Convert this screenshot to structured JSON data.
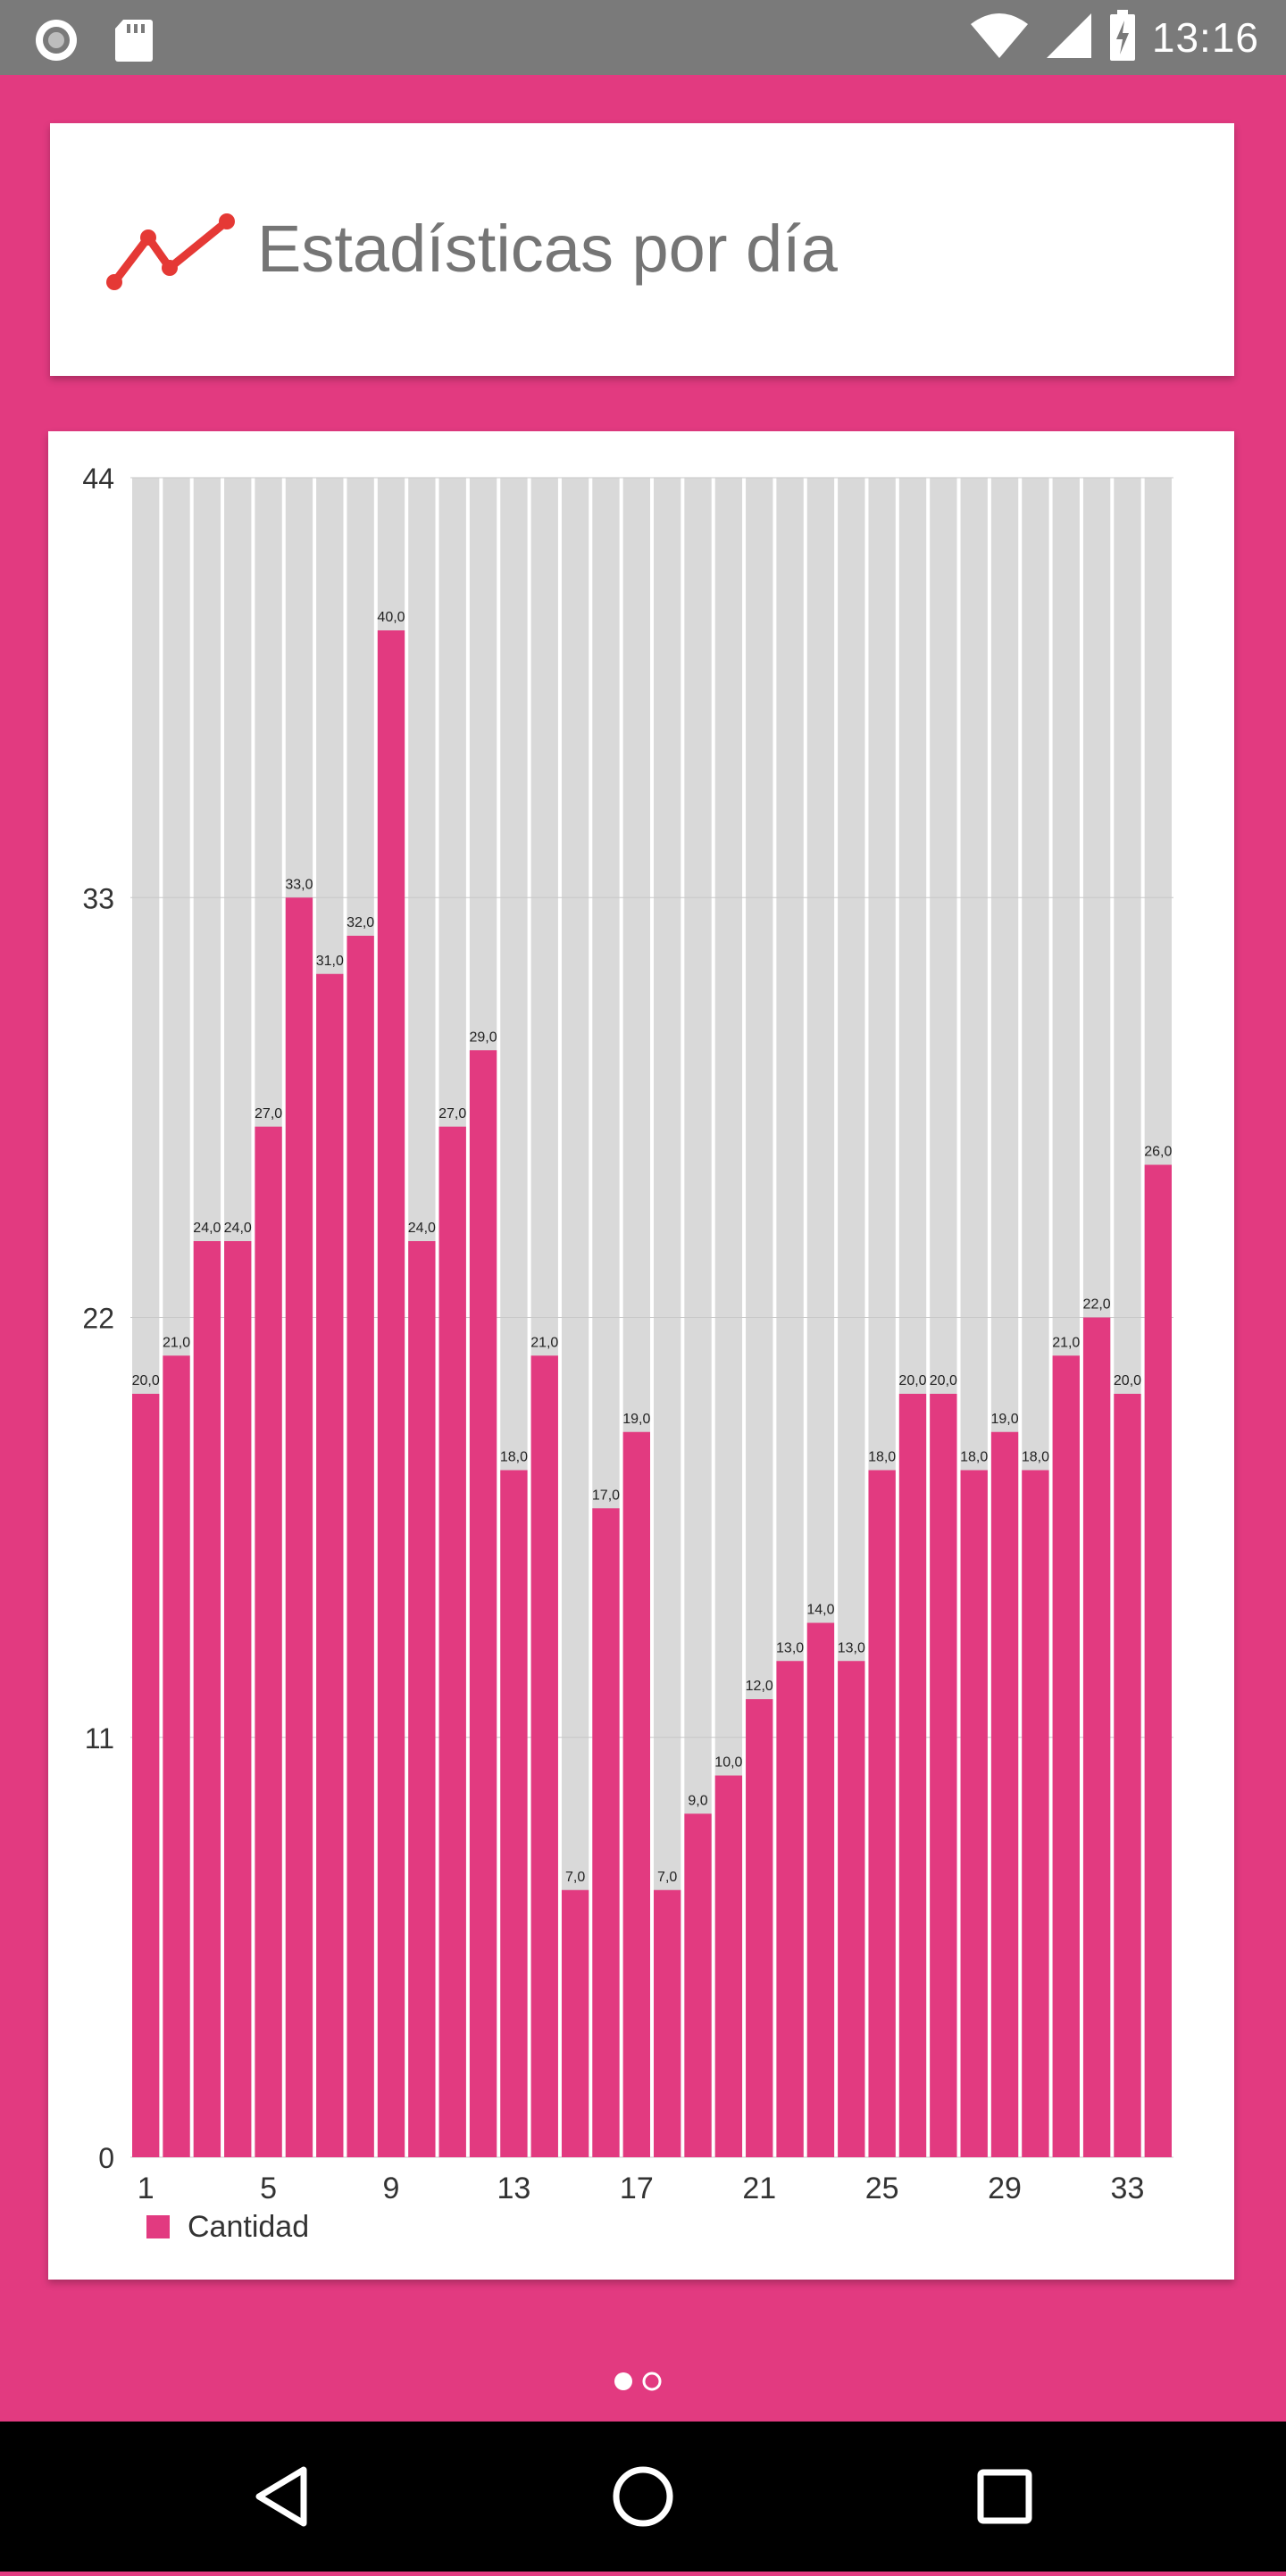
{
  "status_bar": {
    "time": "13:16",
    "icons": [
      "circle-notification-icon",
      "sd-card-icon",
      "wifi-icon",
      "signal-icon",
      "battery-charging-icon"
    ]
  },
  "header": {
    "title": "Estadísticas por día",
    "icon": "line-chart-icon",
    "icon_color": "#E53935"
  },
  "colors": {
    "background": "#E23A80",
    "bar": "#E23A80",
    "bar_track": "#D9D9D9",
    "card": "#FFFFFF"
  },
  "chart_data": {
    "type": "bar",
    "x": [
      1,
      2,
      3,
      4,
      5,
      6,
      7,
      8,
      9,
      10,
      11,
      12,
      13,
      14,
      15,
      16,
      17,
      18,
      19,
      20,
      21,
      22,
      23,
      24,
      25,
      26,
      27,
      28,
      29,
      30,
      31,
      32,
      33,
      34
    ],
    "values": [
      20,
      21,
      24,
      24,
      27,
      33,
      31,
      32,
      40,
      24,
      27,
      29,
      18,
      21,
      7,
      17,
      19,
      7,
      9,
      10,
      12,
      13,
      14,
      13,
      18,
      20,
      20,
      18,
      19,
      18,
      21,
      22,
      20,
      26
    ],
    "value_labels": [
      "20,0",
      "21,0",
      "24,0",
      "24,0",
      "27,0",
      "33,0",
      "31,0",
      "32,0",
      "40,0",
      "24,0",
      "27,0",
      "29,0",
      "18,0",
      "21,0",
      "7,0",
      "17,0",
      "19,0",
      "7,0",
      "9,0",
      "10,0",
      "12,0",
      "13,0",
      "14,0",
      "13,0",
      "18,0",
      "20,0",
      "20,0",
      "18,0",
      "19,0",
      "18,0",
      "21,0",
      "22,0",
      "20,0",
      "26,0"
    ],
    "x_ticks": [
      "1",
      "5",
      "9",
      "13",
      "17",
      "21",
      "25",
      "29",
      "33"
    ],
    "y_ticks": [
      "0",
      "11",
      "22",
      "33",
      "44"
    ],
    "ylim": [
      0,
      44
    ],
    "legend": "Cantidad",
    "legend_position": "bottom-left",
    "grid": true
  },
  "pager": {
    "pages": 2,
    "current": 1
  },
  "nav_bar": {
    "buttons": [
      "back-icon",
      "home-icon",
      "recents-icon"
    ]
  }
}
